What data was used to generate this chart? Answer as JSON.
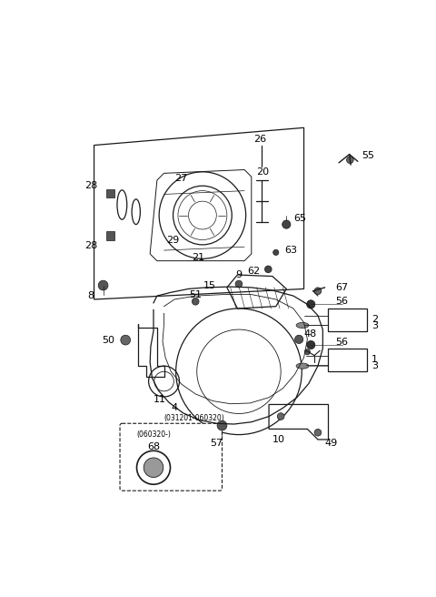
{
  "bg_color": "#ffffff",
  "line_color": "#1a1a1a",
  "fig_width": 4.8,
  "fig_height": 6.56,
  "dpi": 100
}
